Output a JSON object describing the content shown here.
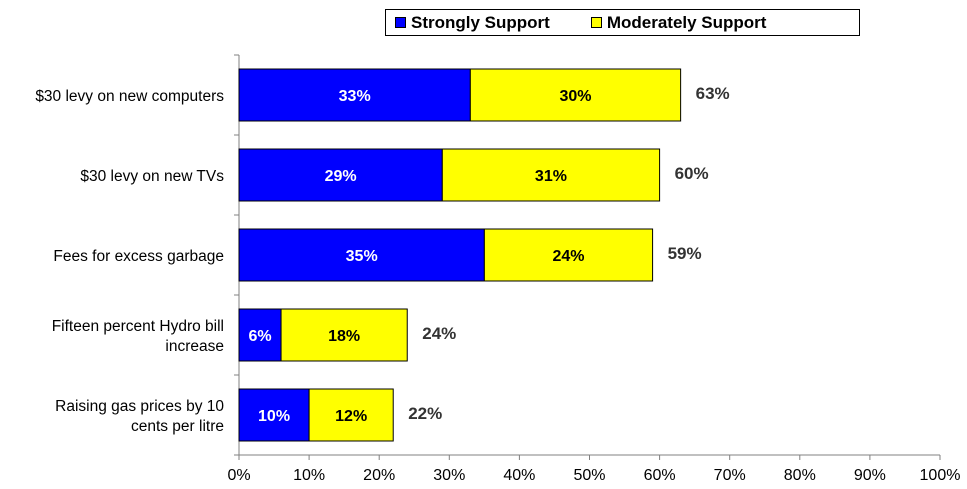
{
  "chart_data": {
    "type": "bar",
    "orientation": "horizontal",
    "stacked": true,
    "categories": [
      "$30 levy on new computers",
      "$30 levy on new TVs",
      "Fees for excess garbage",
      "Fifteen percent Hydro bill increase",
      "Raising gas prices by 10 cents per litre"
    ],
    "category_lines": [
      [
        "$30 levy on new computers"
      ],
      [
        "$30 levy on new TVs"
      ],
      [
        "Fees for excess garbage"
      ],
      [
        "Fifteen percent Hydro bill",
        "increase"
      ],
      [
        "Raising gas prices by 10",
        "cents per litre"
      ]
    ],
    "series": [
      {
        "name": "Strongly Support",
        "color": "#0000ff",
        "values": [
          33,
          29,
          35,
          6,
          10
        ],
        "labels": [
          "33%",
          "29%",
          "35%",
          "6%",
          "10%"
        ]
      },
      {
        "name": "Moderately Support",
        "color": "#ffff00",
        "values": [
          30,
          31,
          24,
          18,
          12
        ],
        "labels": [
          "30%",
          "31%",
          "24%",
          "18%",
          "12%"
        ]
      }
    ],
    "totals": [
      63,
      60,
      59,
      24,
      22
    ],
    "total_labels": [
      "63%",
      "60%",
      "59%",
      "24%",
      "22%"
    ],
    "xlim": [
      0,
      100
    ],
    "x_ticks": [
      0,
      10,
      20,
      30,
      40,
      50,
      60,
      70,
      80,
      90,
      100
    ],
    "x_tick_labels": [
      "0%",
      "10%",
      "20%",
      "30%",
      "40%",
      "50%",
      "60%",
      "70%",
      "80%",
      "90%",
      "100%"
    ],
    "grid": false,
    "legend_position": "top-right"
  }
}
